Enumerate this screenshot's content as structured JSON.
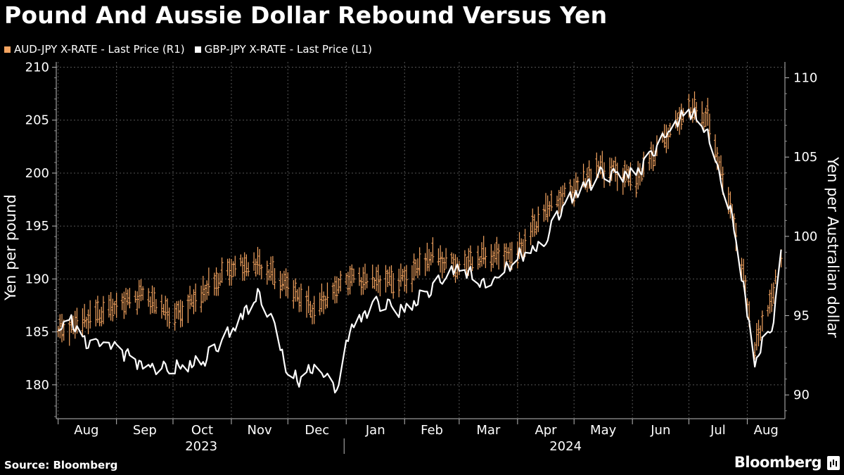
{
  "title": "Pound And Aussie Dollar Rebound Versus Yen",
  "source": "Source: Bloomberg",
  "brand": "Bloomberg",
  "chart_data": {
    "type": "line",
    "title": "Pound And Aussie Dollar Rebound Versus Yen",
    "series": [
      {
        "name": "AUD-JPY X-RATE - Last Price (R1)",
        "axis": "right",
        "color": "#f4a460",
        "style": "ohlc-bars",
        "x": [
          "2023-08-01",
          "2023-08-15",
          "2023-09-01",
          "2023-09-15",
          "2023-10-02",
          "2023-10-16",
          "2023-11-01",
          "2023-11-15",
          "2023-12-01",
          "2023-12-15",
          "2024-01-02",
          "2024-01-16",
          "2024-02-01",
          "2024-02-15",
          "2024-03-01",
          "2024-03-15",
          "2024-04-01",
          "2024-04-15",
          "2024-05-01",
          "2024-05-15",
          "2024-06-03",
          "2024-06-17",
          "2024-07-01",
          "2024-07-11",
          "2024-07-25",
          "2024-08-05",
          "2024-08-15",
          "2024-08-19"
        ],
        "values": [
          94.0,
          94.8,
          95.5,
          96.4,
          95.0,
          96.3,
          98.0,
          98.2,
          97.0,
          95.3,
          97.3,
          97.3,
          97.3,
          98.8,
          98.0,
          98.8,
          99.0,
          101.5,
          103.0,
          104.4,
          103.6,
          106.0,
          108.0,
          107.5,
          101.0,
          93.0,
          96.5,
          98.5
        ],
        "ylim": [
          88.5,
          111
        ]
      },
      {
        "name": "GBP-JPY X-RATE - Last Price (L1)",
        "axis": "left",
        "color": "#ffffff",
        "style": "line",
        "x": [
          "2023-08-01",
          "2023-08-07",
          "2023-08-15",
          "2023-09-01",
          "2023-09-15",
          "2023-10-02",
          "2023-10-16",
          "2023-11-01",
          "2023-11-15",
          "2023-11-24",
          "2023-12-01",
          "2023-12-07",
          "2023-12-15",
          "2023-12-28",
          "2024-01-02",
          "2024-01-16",
          "2024-02-01",
          "2024-02-15",
          "2024-03-01",
          "2024-03-15",
          "2024-04-01",
          "2024-04-15",
          "2024-04-22",
          "2024-05-01",
          "2024-05-15",
          "2024-06-03",
          "2024-06-17",
          "2024-07-01",
          "2024-07-11",
          "2024-07-25",
          "2024-08-05",
          "2024-08-15",
          "2024-08-19"
        ],
        "values": [
          185.0,
          186.5,
          184.0,
          183.5,
          182.0,
          181.5,
          182.0,
          185.0,
          188.5,
          186.0,
          181.0,
          180.5,
          181.5,
          179.5,
          185.0,
          188.0,
          187.0,
          189.0,
          191.0,
          189.5,
          192.0,
          193.0,
          196.0,
          198.0,
          200.0,
          200.0,
          203.0,
          206.0,
          204.0,
          195.0,
          182.0,
          186.0,
          192.0
        ],
        "ylim": [
          176.8,
          210.5
        ]
      }
    ],
    "left_axis": {
      "label": "Yen per pound",
      "ticks": [
        180,
        185,
        190,
        195,
        200,
        205,
        210
      ],
      "ylim": [
        176.8,
        210.5
      ]
    },
    "right_axis": {
      "label": "Yen per Australian dollar",
      "ticks": [
        90,
        95,
        100,
        105,
        110
      ],
      "ylim": [
        88.5,
        111
      ]
    },
    "x_axis": {
      "months": [
        "Aug",
        "Sep",
        "Oct",
        "Nov",
        "Dec",
        "Jan",
        "Feb",
        "Mar",
        "Apr",
        "May",
        "Jun",
        "Jul",
        "Aug"
      ],
      "years": [
        "2023",
        "2024"
      ],
      "range": [
        "2023-07-31",
        "2024-08-21"
      ]
    },
    "grid": true,
    "legend_position": "top-left"
  }
}
